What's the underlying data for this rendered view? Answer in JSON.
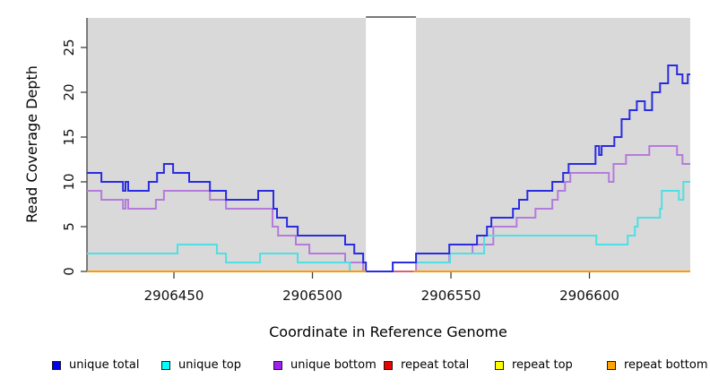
{
  "chart_data": {
    "type": "line",
    "subtype": "step",
    "title": "",
    "xlabel": "Coordinate in Reference Genome",
    "ylabel": "Read Coverage Depth",
    "x_domain": [
      2906418.6,
      2906636.4
    ],
    "y_domain": [
      0,
      28.3
    ],
    "x_ticks": [
      "2906450",
      "2906500",
      "2906550",
      "2906600"
    ],
    "x_tick_values": [
      2906450,
      2906500,
      2906550,
      2906600
    ],
    "y_ticks": [
      "0",
      "5",
      "10",
      "15",
      "20",
      "25"
    ],
    "y_tick_values": [
      0,
      5,
      10,
      15,
      20,
      25
    ],
    "grid": false,
    "plot_bg_color": "#d9d9d9",
    "masked_region": {
      "start": 2906519.3,
      "end": 2906537.4,
      "fill": "#ffffff",
      "top_line_color": "#787878"
    },
    "series": [
      {
        "name": "repeat top",
        "color": "#ffff00",
        "width": 2,
        "steps": [
          [
            2906418.6,
            0
          ]
        ]
      },
      {
        "name": "unique bottom",
        "color": "#b57bdc",
        "width": 2,
        "steps": [
          [
            2906418.6,
            9
          ],
          [
            2906423.8,
            8
          ],
          [
            2906431.6,
            7
          ],
          [
            2906432.5,
            8
          ],
          [
            2906433.5,
            7
          ],
          [
            2906443.5,
            8
          ],
          [
            2906446.4,
            9
          ],
          [
            2906463,
            8
          ],
          [
            2906468.8,
            7
          ],
          [
            2906485.6,
            5
          ],
          [
            2906487.6,
            4
          ],
          [
            2906494,
            3
          ],
          [
            2906498.9,
            2
          ],
          [
            2906511.8,
            1
          ],
          [
            2906518.3,
            0
          ],
          [
            2906537.4,
            1
          ],
          [
            2906549.4,
            2
          ],
          [
            2906557.8,
            3
          ],
          [
            2906565.3,
            5
          ],
          [
            2906573.7,
            6
          ],
          [
            2906580.5,
            7
          ],
          [
            2906586.6,
            8
          ],
          [
            2906588.6,
            9
          ],
          [
            2906591.2,
            10
          ],
          [
            2906593.1,
            11
          ],
          [
            2906607,
            10
          ],
          [
            2906608.7,
            12
          ],
          [
            2906613.2,
            13
          ],
          [
            2906621.6,
            14
          ],
          [
            2906631.6,
            13
          ],
          [
            2906633.6,
            12
          ]
        ]
      },
      {
        "name": "repeat total",
        "color": "#d95f72",
        "width": 2,
        "steps": [
          [
            2906418.6,
            0
          ]
        ]
      },
      {
        "name": "unique top",
        "color": "#4fdfe4",
        "width": 2,
        "steps": [
          [
            2906418.6,
            2
          ],
          [
            2906451.3,
            3
          ],
          [
            2906465.5,
            2
          ],
          [
            2906468.8,
            1
          ],
          [
            2906481.1,
            2
          ],
          [
            2906494.7,
            1
          ],
          [
            2906513.5,
            0
          ],
          [
            2906529,
            1
          ],
          [
            2906549.7,
            2
          ],
          [
            2906562,
            4
          ],
          [
            2906602.5,
            3
          ],
          [
            2906613.8,
            4
          ],
          [
            2906616.4,
            5
          ],
          [
            2906617.4,
            6
          ],
          [
            2906625.5,
            7
          ],
          [
            2906626.1,
            9
          ],
          [
            2906632.3,
            8
          ],
          [
            2906633.9,
            10
          ]
        ]
      },
      {
        "name": "unique total",
        "color": "#2a2ce0",
        "width": 2,
        "steps": [
          [
            2906418.6,
            11
          ],
          [
            2906423.8,
            10
          ],
          [
            2906431.6,
            9
          ],
          [
            2906432.5,
            10
          ],
          [
            2906433.5,
            9
          ],
          [
            2906440.9,
            10
          ],
          [
            2906443.9,
            11
          ],
          [
            2906446.4,
            12
          ],
          [
            2906449.7,
            11
          ],
          [
            2906455.5,
            10
          ],
          [
            2906463,
            9
          ],
          [
            2906468.8,
            8
          ],
          [
            2906480.4,
            9
          ],
          [
            2906485.9,
            7
          ],
          [
            2906487.2,
            6
          ],
          [
            2906490.8,
            5
          ],
          [
            2906494.7,
            4
          ],
          [
            2906511.8,
            3
          ],
          [
            2906515.1,
            2
          ],
          [
            2906518.3,
            1
          ],
          [
            2906519.3,
            0
          ],
          [
            2906529,
            1
          ],
          [
            2906537.4,
            2
          ],
          [
            2906549.4,
            3
          ],
          [
            2906559.4,
            4
          ],
          [
            2906563,
            5
          ],
          [
            2906564.6,
            6
          ],
          [
            2906572.4,
            7
          ],
          [
            2906574.6,
            8
          ],
          [
            2906577.6,
            9
          ],
          [
            2906586.6,
            10
          ],
          [
            2906590.5,
            11
          ],
          [
            2906592.5,
            12
          ],
          [
            2906602.2,
            14
          ],
          [
            2906603.5,
            13
          ],
          [
            2906604.4,
            14
          ],
          [
            2906609,
            15
          ],
          [
            2906611.6,
            17
          ],
          [
            2906614.5,
            18
          ],
          [
            2906617.1,
            19
          ],
          [
            2906620,
            18
          ],
          [
            2906622.6,
            20
          ],
          [
            2906625.5,
            21
          ],
          [
            2906628.4,
            23
          ],
          [
            2906631.6,
            22
          ],
          [
            2906633.6,
            21
          ],
          [
            2906635.5,
            22
          ]
        ]
      },
      {
        "name": "repeat bottom",
        "color": "#ff9a00",
        "width": 2,
        "steps": [
          [
            2906418.6,
            0
          ]
        ],
        "x_end": 2906519.3
      },
      {
        "name": "repeat bottom",
        "color": "#ff9a00",
        "width": 2,
        "steps": [
          [
            2906536.5,
            0
          ]
        ]
      }
    ],
    "legend_position": "bottom"
  },
  "legend": {
    "items": [
      {
        "label": "unique total",
        "swatch": "#0000ee"
      },
      {
        "label": "unique top",
        "swatch": "#00ffff"
      },
      {
        "label": "unique bottom",
        "swatch": "#a020f0"
      },
      {
        "label": "repeat total",
        "swatch": "#ee0000"
      },
      {
        "label": "repeat top",
        "swatch": "#ffff00"
      },
      {
        "label": "repeat bottom",
        "swatch": "#ffa500"
      }
    ]
  },
  "axis_style": {
    "line_color": "#404040",
    "tick_color": "#404040",
    "tick_label_color": "#111111"
  }
}
